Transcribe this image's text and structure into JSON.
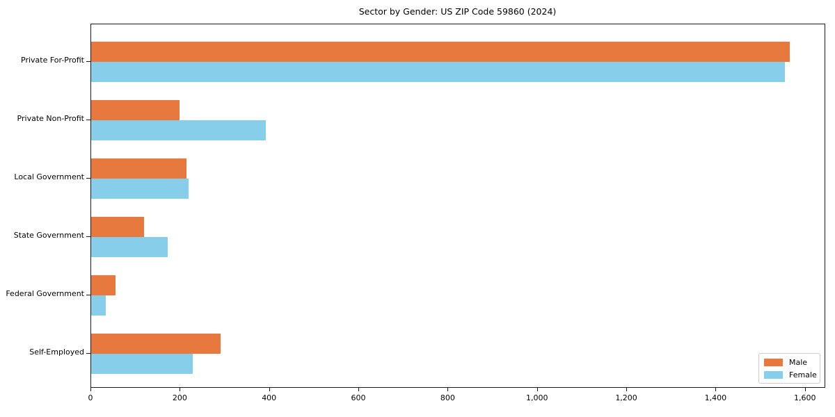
{
  "title": "Sector by Gender: US ZIP Code 59860 (2024)",
  "chart_data": {
    "type": "bar",
    "orientation": "horizontal",
    "title": "Sector by Gender: US ZIP Code 59860 (2024)",
    "categories": [
      "Private For-Profit",
      "Private Non-Profit",
      "Local Government",
      "State Government",
      "Federal Government",
      "Self-Employed"
    ],
    "series": [
      {
        "name": "Male",
        "color": "#e8793e",
        "values": [
          1566,
          198,
          214,
          118,
          54,
          290
        ]
      },
      {
        "name": "Female",
        "color": "#87ceeb",
        "values": [
          1555,
          392,
          218,
          171,
          32,
          227
        ]
      }
    ],
    "xlabel": "",
    "ylabel": "",
    "xlim": [
      0,
      1644
    ],
    "xticks": [
      0,
      200,
      400,
      600,
      800,
      1000,
      1200,
      1400,
      1600
    ],
    "xtick_labels": [
      "0",
      "200",
      "400",
      "600",
      "800",
      "1,000",
      "1,200",
      "1,400",
      "1,600"
    ],
    "grid": false,
    "legend": {
      "position": "lower right",
      "entries": [
        "Male",
        "Female"
      ]
    }
  }
}
